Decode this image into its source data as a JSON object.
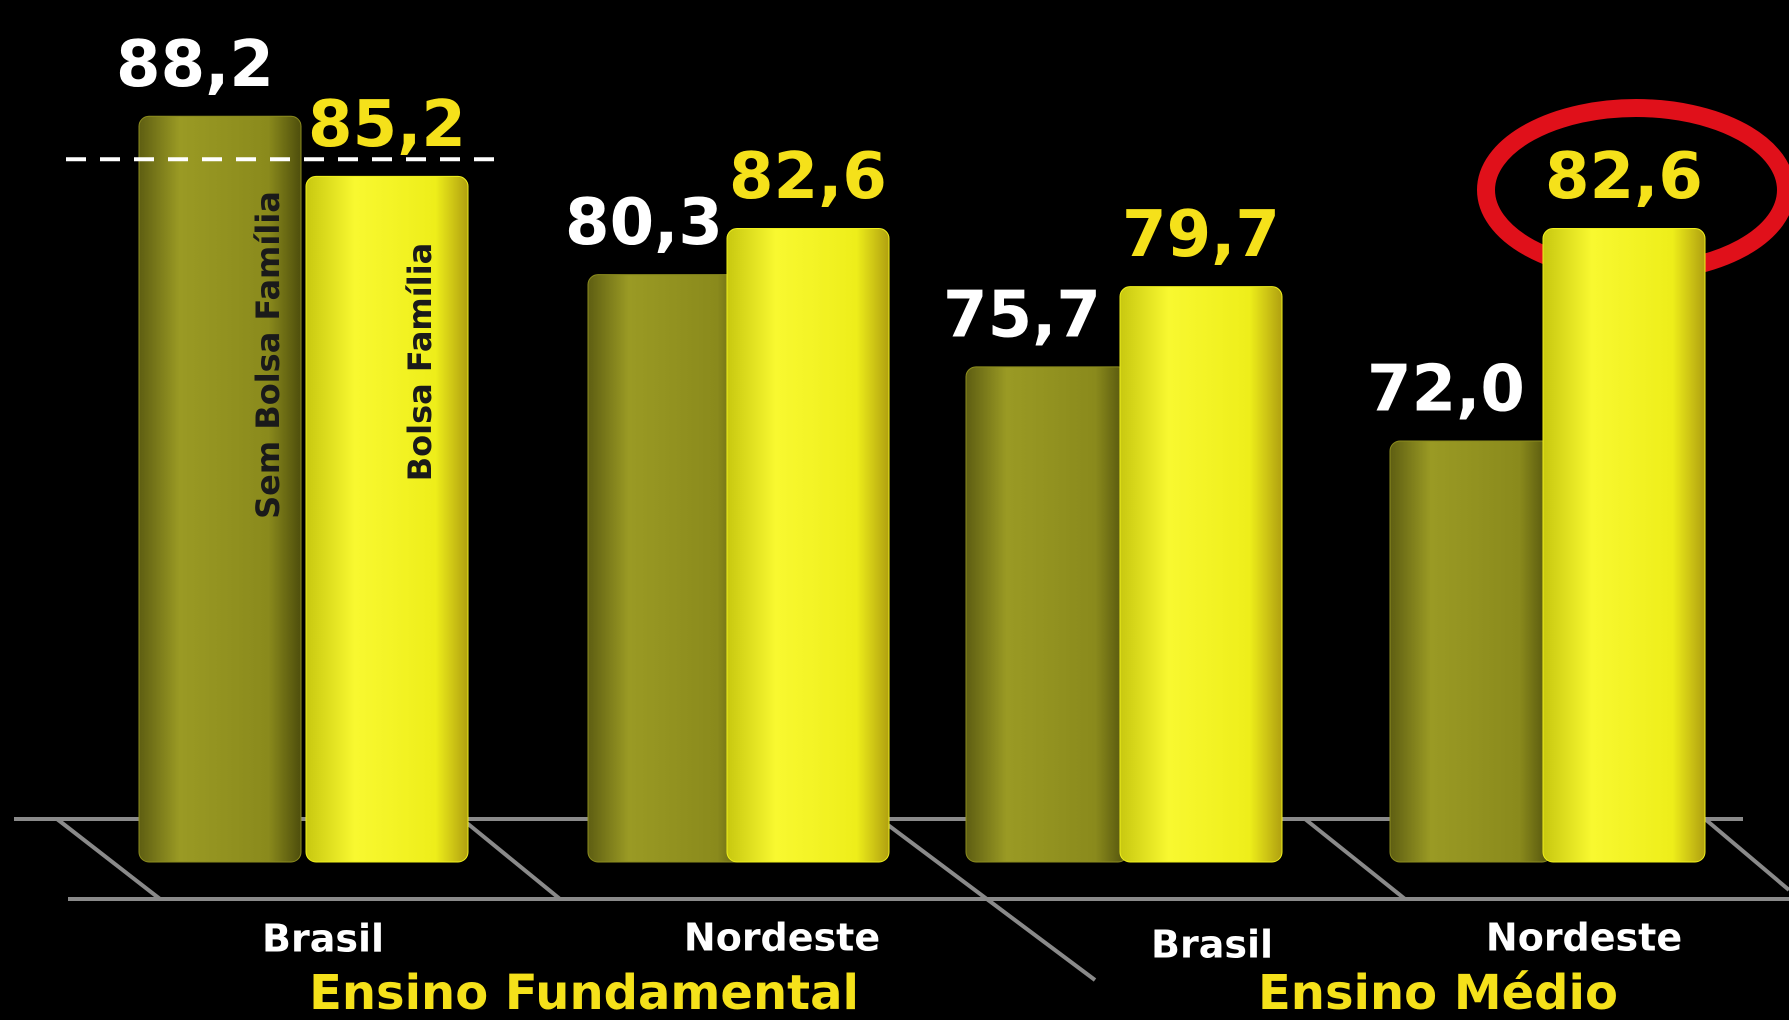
{
  "chart_data": {
    "type": "bar",
    "categories": [
      "Brasil",
      "Nordeste",
      "Brasil",
      "Nordeste"
    ],
    "groups": [
      "Ensino Fundamental",
      "Ensino Médio"
    ],
    "series": [
      {
        "name": "Sem Bolsa Família",
        "color": "#8c8c1e",
        "values": [
          88.2,
          80.3,
          75.7,
          72.0
        ],
        "value_labels": [
          "88,2",
          "80,3",
          "75,7",
          "72,0"
        ]
      },
      {
        "name": "Bolsa Família",
        "color": "#f0f01c",
        "values": [
          85.2,
          82.6,
          79.7,
          82.6
        ],
        "value_labels": [
          "85,2",
          "82,6",
          "79,7",
          "82,6"
        ]
      }
    ],
    "ylim": [
      51,
      94
    ]
  }
}
